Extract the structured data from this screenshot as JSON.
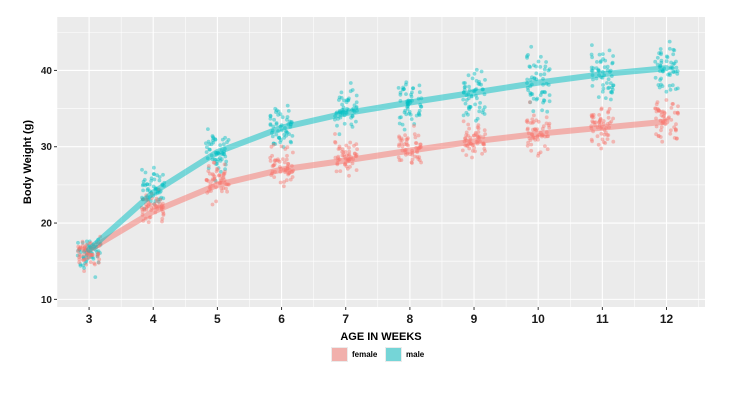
{
  "chart_data": {
    "type": "scatter",
    "xlabel": "AGE IN WEEKS",
    "ylabel": "Body Weight (g)",
    "x": [
      3,
      4,
      5,
      6,
      7,
      8,
      9,
      10,
      11,
      12
    ],
    "xlim": [
      2.5,
      12.6
    ],
    "ylim": [
      9,
      47
    ],
    "yticks": [
      10,
      20,
      30,
      40
    ],
    "grid": true,
    "legend_position": "bottom",
    "series": [
      {
        "name": "female",
        "color": "#F8766D",
        "point_mean": [
          16,
          22,
          25.5,
          27.5,
          28.5,
          30,
          31,
          32,
          32.5,
          33.5
        ],
        "point_spread": [
          2.5,
          2.5,
          3,
          3,
          3,
          3,
          3,
          3.5,
          3.5,
          4
        ],
        "trend": [
          16.5,
          21.5,
          25,
          27,
          28.2,
          29.5,
          30.7,
          31.7,
          32.5,
          33.3
        ]
      },
      {
        "name": "male",
        "color": "#00BFC4",
        "point_mean": [
          16,
          24.5,
          29.5,
          32.5,
          34.5,
          35.5,
          36.5,
          38.5,
          39.5,
          40.5
        ],
        "point_spread": [
          3,
          3,
          3.5,
          3.5,
          4,
          4,
          4,
          4,
          4.5,
          4.5
        ],
        "trend": [
          16.5,
          24,
          29.3,
          32.5,
          34.4,
          35.8,
          37.1,
          38.4,
          39.5,
          40.3
        ]
      }
    ]
  }
}
